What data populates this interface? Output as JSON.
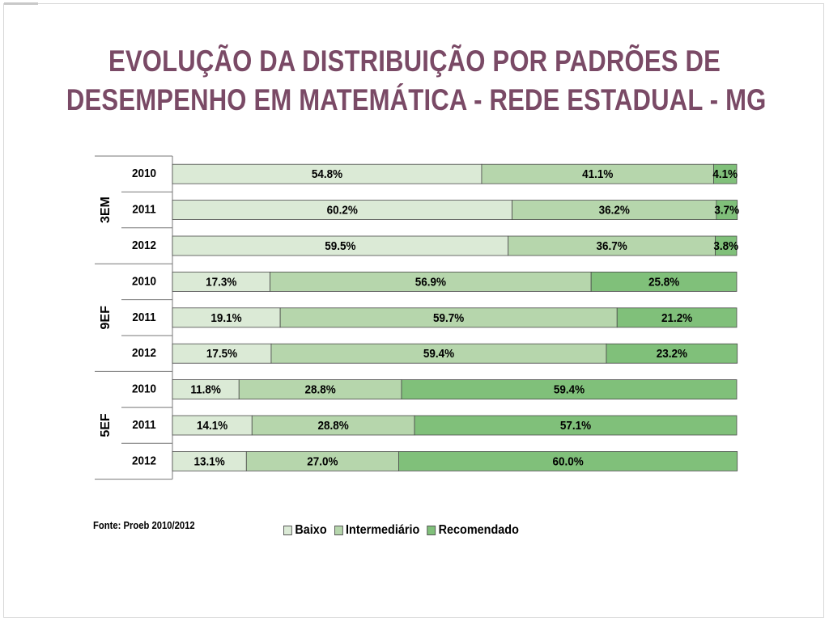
{
  "title": {
    "line1": "EVOLUÇÃO DA DISTRIBUIÇÃO POR PADRÕES DE",
    "line2": "DESEMPENHO EM MATEMÁTICA - REDE ESTADUAL - MG"
  },
  "source": "Fonte: Proeb 2010/2012",
  "colors": {
    "title": "#7a4a66",
    "baixo": "#dbead6",
    "intermediario": "#b6d6ac",
    "recomendado": "#80c07a"
  },
  "chart_data": {
    "type": "bar",
    "orientation": "horizontal",
    "stacked": true,
    "percent_scale": [
      0,
      100
    ],
    "legend_position": "bottom",
    "groups": [
      {
        "label": "3EM",
        "categories": [
          "2010",
          "2011",
          "2012"
        ]
      },
      {
        "label": "9EF",
        "categories": [
          "2010",
          "2011",
          "2012"
        ]
      },
      {
        "label": "5EF",
        "categories": [
          "2010",
          "2011",
          "2012"
        ]
      }
    ],
    "series": [
      {
        "name": "Baixo",
        "values": [
          54.8,
          60.2,
          59.5,
          17.3,
          19.1,
          17.5,
          11.8,
          14.1,
          13.1
        ]
      },
      {
        "name": "Intermediário",
        "values": [
          41.1,
          36.2,
          36.7,
          56.9,
          59.7,
          59.4,
          28.8,
          28.8,
          27.0
        ]
      },
      {
        "name": "Recomendado",
        "values": [
          4.1,
          3.7,
          3.8,
          25.8,
          21.2,
          23.2,
          59.4,
          57.1,
          60.0
        ]
      }
    ]
  }
}
